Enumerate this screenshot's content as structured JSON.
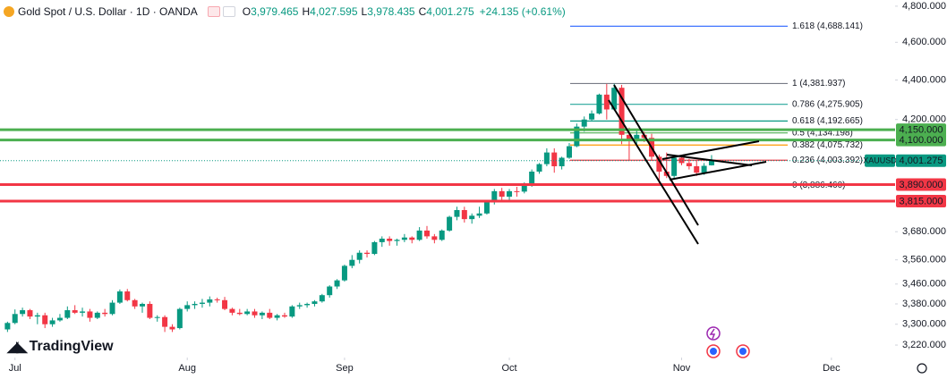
{
  "header": {
    "symbol": "Gold Spot / U.S. Dollar · 1D · OANDA",
    "ohlc": [
      {
        "key": "O",
        "value": "3,979.465"
      },
      {
        "key": "H",
        "value": "4,027.595"
      },
      {
        "key": "L",
        "value": "3,978.435"
      },
      {
        "key": "C",
        "value": "4,001.275"
      }
    ],
    "change": "+24.135 (+0.61%)"
  },
  "logo": "TradingView",
  "chart_data": {
    "type": "candlestick",
    "log_scale": true,
    "ylim": [
      3173,
      4835
    ],
    "xlim": [
      -1,
      118.5
    ],
    "yticks": [
      {
        "value": 4800,
        "label": "4,800.000"
      },
      {
        "value": 4600,
        "label": "4,600.000"
      },
      {
        "value": 4400,
        "label": "4,400.000"
      },
      {
        "value": 4200,
        "label": "4,200.000"
      },
      {
        "value": 3680,
        "label": "3,680.000"
      },
      {
        "value": 3560,
        "label": "3,560.000"
      },
      {
        "value": 3460,
        "label": "3,460.000"
      },
      {
        "value": 3380,
        "label": "3,380.000"
      },
      {
        "value": 3300,
        "label": "3,300.000"
      },
      {
        "value": 3220,
        "label": "3,220.000"
      }
    ],
    "xticks": [
      {
        "value": 1,
        "label": "Jul"
      },
      {
        "value": 24,
        "label": "Aug"
      },
      {
        "value": 45,
        "label": "Sep"
      },
      {
        "value": 67,
        "label": "Oct"
      },
      {
        "value": 90,
        "label": "Nov"
      },
      {
        "value": 110,
        "label": "Dec"
      }
    ],
    "up_color": "#089981",
    "down_color": "#f23645",
    "candles": [
      [
        3280,
        3310,
        3270,
        3305
      ],
      [
        3305,
        3358,
        3300,
        3340
      ],
      [
        3340,
        3365,
        3330,
        3355
      ],
      [
        3355,
        3360,
        3320,
        3330
      ],
      [
        3330,
        3345,
        3300,
        3335
      ],
      [
        3335,
        3345,
        3285,
        3300
      ],
      [
        3300,
        3325,
        3290,
        3315
      ],
      [
        3315,
        3340,
        3310,
        3325
      ],
      [
        3325,
        3370,
        3320,
        3355
      ],
      [
        3355,
        3375,
        3340,
        3345
      ],
      [
        3345,
        3365,
        3330,
        3350
      ],
      [
        3350,
        3360,
        3310,
        3325
      ],
      [
        3325,
        3350,
        3320,
        3345
      ],
      [
        3345,
        3360,
        3330,
        3340
      ],
      [
        3340,
        3395,
        3335,
        3385
      ],
      [
        3385,
        3438,
        3380,
        3430
      ],
      [
        3430,
        3440,
        3390,
        3395
      ],
      [
        3395,
        3400,
        3360,
        3370
      ],
      [
        3370,
        3385,
        3345,
        3380
      ],
      [
        3380,
        3390,
        3320,
        3325
      ],
      [
        3325,
        3335,
        3310,
        3328
      ],
      [
        3328,
        3335,
        3270,
        3290
      ],
      [
        3290,
        3300,
        3270,
        3280
      ],
      [
        3285,
        3365,
        3280,
        3360
      ],
      [
        3360,
        3390,
        3350,
        3375
      ],
      [
        3375,
        3390,
        3360,
        3380
      ],
      [
        3380,
        3400,
        3365,
        3385
      ],
      [
        3385,
        3410,
        3370,
        3398
      ],
      [
        3398,
        3405,
        3385,
        3395
      ],
      [
        3395,
        3408,
        3355,
        3360
      ],
      [
        3360,
        3365,
        3335,
        3345
      ],
      [
        3345,
        3360,
        3335,
        3340
      ],
      [
        3340,
        3360,
        3335,
        3350
      ],
      [
        3350,
        3360,
        3325,
        3335
      ],
      [
        3335,
        3350,
        3320,
        3345
      ],
      [
        3345,
        3360,
        3320,
        3325
      ],
      [
        3325,
        3340,
        3315,
        3335
      ],
      [
        3335,
        3345,
        3325,
        3330
      ],
      [
        3330,
        3375,
        3325,
        3370
      ],
      [
        3370,
        3385,
        3360,
        3375
      ],
      [
        3375,
        3385,
        3365,
        3380
      ],
      [
        3380,
        3395,
        3370,
        3390
      ],
      [
        3390,
        3420,
        3385,
        3415
      ],
      [
        3415,
        3455,
        3405,
        3450
      ],
      [
        3450,
        3480,
        3440,
        3475
      ],
      [
        3475,
        3540,
        3470,
        3535
      ],
      [
        3535,
        3580,
        3525,
        3560
      ],
      [
        3560,
        3600,
        3545,
        3590
      ],
      [
        3590,
        3600,
        3570,
        3585
      ],
      [
        3585,
        3640,
        3580,
        3635
      ],
      [
        3635,
        3660,
        3615,
        3650
      ],
      [
        3650,
        3660,
        3620,
        3640
      ],
      [
        3640,
        3650,
        3620,
        3645
      ],
      [
        3645,
        3670,
        3635,
        3655
      ],
      [
        3655,
        3660,
        3630,
        3645
      ],
      [
        3645,
        3700,
        3640,
        3685
      ],
      [
        3685,
        3705,
        3650,
        3660
      ],
      [
        3660,
        3670,
        3630,
        3645
      ],
      [
        3645,
        3690,
        3640,
        3685
      ],
      [
        3685,
        3750,
        3680,
        3745
      ],
      [
        3745,
        3790,
        3730,
        3775
      ],
      [
        3775,
        3790,
        3720,
        3735
      ],
      [
        3735,
        3760,
        3715,
        3750
      ],
      [
        3750,
        3790,
        3740,
        3760
      ],
      [
        3760,
        3820,
        3755,
        3810
      ],
      [
        3810,
        3870,
        3800,
        3860
      ],
      [
        3860,
        3875,
        3820,
        3835
      ],
      [
        3835,
        3870,
        3820,
        3860
      ],
      [
        3860,
        3880,
        3835,
        3858
      ],
      [
        3858,
        3900,
        3850,
        3885
      ],
      [
        3885,
        3960,
        3880,
        3950
      ],
      [
        3950,
        3990,
        3940,
        3985
      ],
      [
        3985,
        4060,
        3975,
        4040
      ],
      [
        4040,
        4060,
        3945,
        3975
      ],
      [
        3975,
        4020,
        3960,
        4015
      ],
      [
        4015,
        4085,
        4010,
        4070
      ],
      [
        4070,
        4180,
        4065,
        4165
      ],
      [
        4165,
        4215,
        4140,
        4200
      ],
      [
        4200,
        4245,
        4195,
        4230
      ],
      [
        4230,
        4330,
        4225,
        4325
      ],
      [
        4325,
        4380,
        4200,
        4250
      ],
      [
        4250,
        4381,
        4245,
        4360
      ],
      [
        4360,
        4375,
        4080,
        4125
      ],
      [
        4125,
        4160,
        4005,
        4095
      ],
      [
        4095,
        4150,
        4080,
        4125
      ],
      [
        4125,
        4140,
        4090,
        4110
      ],
      [
        4110,
        4130,
        4000,
        4020
      ],
      [
        4020,
        4030,
        3890,
        3950
      ],
      [
        3950,
        4040,
        3920,
        3930
      ],
      [
        3930,
        4030,
        3920,
        4015
      ],
      [
        4015,
        4025,
        3980,
        3990
      ],
      [
        3990,
        4010,
        3960,
        3975
      ],
      [
        3975,
        4000,
        3930,
        3945
      ],
      [
        3945,
        3990,
        3935,
        3977
      ],
      [
        3979.465,
        4027.595,
        3978.435,
        4001.275
      ]
    ],
    "last_price": {
      "symbol": "XAUUSD",
      "value": 4001.275,
      "label": "4,001.275",
      "color": "#089981"
    },
    "levels": [
      {
        "value": 4150,
        "label": "4,150.000",
        "color": "#4caf50"
      },
      {
        "value": 4100,
        "label": "4,100.000",
        "color": "#4caf50"
      },
      {
        "value": 3890,
        "label": "3,890.000",
        "color": "#f23645"
      },
      {
        "value": 3815,
        "label": "3,815.000",
        "color": "#f23645"
      }
    ],
    "fibonacci": [
      {
        "value": 4688.141,
        "label": "1.618 (4,688.141)",
        "color": "#2962ff"
      },
      {
        "value": 4381.937,
        "label": "1 (4,381.937)",
        "color": "#787b86"
      },
      {
        "value": 4275.905,
        "label": "0.786 (4,275.905)",
        "color": "#26a69a"
      },
      {
        "value": 4192.665,
        "label": "0.618 (4,192.665)",
        "color": "#089981"
      },
      {
        "value": 4134.198,
        "label": "0.5 (4,134.198)",
        "color": "#4caf50"
      },
      {
        "value": 4075.732,
        "label": "0.382 (4,075.732)",
        "color": "#ff9800"
      },
      {
        "value": 4003.392,
        "label": "0.236 (4,003.392)",
        "color": "#f23645"
      },
      {
        "value": 3886.46,
        "label": "0 (3,886.460)",
        "color": "#787b86"
      }
    ]
  }
}
